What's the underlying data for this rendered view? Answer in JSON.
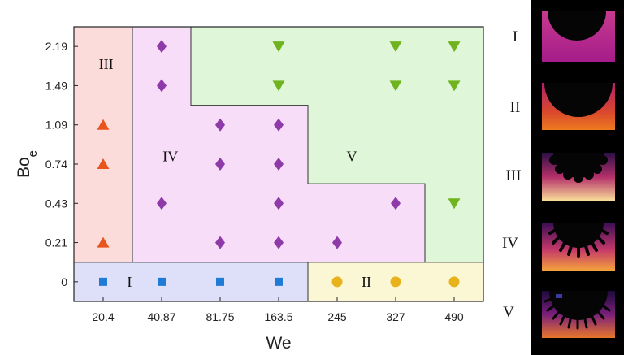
{
  "chart_data": {
    "type": "scatter",
    "xlabel": "We",
    "ylabel": "Bo",
    "ylabel_subscript": "e",
    "x_categories": [
      "20.4",
      "40.87",
      "81.75",
      "163.5",
      "245",
      "327",
      "490"
    ],
    "y_categories": [
      "0",
      "0.21",
      "0.43",
      "0.74",
      "1.09",
      "1.49",
      "2.19"
    ],
    "regions": [
      {
        "label": "I",
        "color": "#dde0f8",
        "polygon": [
          [
            -0.5,
            -0.5
          ],
          [
            3.5,
            -0.5
          ],
          [
            3.5,
            0.5
          ],
          [
            -0.5,
            0.5
          ]
        ],
        "label_at": [
          0.45,
          0
        ]
      },
      {
        "label": "II",
        "color": "#fbf7d5",
        "polygon": [
          [
            3.5,
            -0.5
          ],
          [
            6.5,
            -0.5
          ],
          [
            6.5,
            0.5
          ],
          [
            3.5,
            0.5
          ]
        ],
        "label_at": [
          4.5,
          0
        ]
      },
      {
        "label": "III",
        "color": "#fbdcdb",
        "polygon": [
          [
            -0.5,
            0.5
          ],
          [
            0.5,
            0.5
          ],
          [
            0.5,
            6.5
          ],
          [
            -0.5,
            6.5
          ]
        ],
        "label_at": [
          0.05,
          5.55
        ]
      },
      {
        "label": "IV",
        "color": "#f7ddf8",
        "polygon": [
          [
            0.5,
            0.5
          ],
          [
            5.5,
            0.5
          ],
          [
            5.5,
            2.5
          ],
          [
            3.5,
            2.5
          ],
          [
            3.5,
            4.5
          ],
          [
            1.5,
            4.5
          ],
          [
            1.5,
            6.5
          ],
          [
            0.5,
            6.5
          ]
        ],
        "label_at": [
          1.15,
          3.2
        ]
      },
      {
        "label": "V",
        "color": "#dff6d8",
        "polygon": [
          [
            1.5,
            4.5
          ],
          [
            3.5,
            4.5
          ],
          [
            3.5,
            2.5
          ],
          [
            5.5,
            2.5
          ],
          [
            5.5,
            0.5
          ],
          [
            6.5,
            0.5
          ],
          [
            6.5,
            6.5
          ],
          [
            1.5,
            6.5
          ]
        ],
        "label_at": [
          4.25,
          3.2
        ]
      }
    ],
    "series": [
      {
        "name": "I",
        "marker": "square",
        "color": "#1f7bd4",
        "points": [
          [
            "20.4",
            "0"
          ],
          [
            "40.87",
            "0"
          ],
          [
            "81.75",
            "0"
          ],
          [
            "163.5",
            "0"
          ]
        ]
      },
      {
        "name": "II",
        "marker": "circle",
        "color": "#e8b21c",
        "points": [
          [
            "245",
            "0"
          ],
          [
            "327",
            "0"
          ],
          [
            "490",
            "0"
          ]
        ]
      },
      {
        "name": "III",
        "marker": "triangle-up",
        "color": "#e8541c",
        "points": [
          [
            "20.4",
            "0.21"
          ],
          [
            "20.4",
            "0.74"
          ],
          [
            "20.4",
            "1.09"
          ]
        ]
      },
      {
        "name": "IV",
        "marker": "diamond",
        "color": "#8e3aa8",
        "points": [
          [
            "40.87",
            "2.19"
          ],
          [
            "40.87",
            "1.49"
          ],
          [
            "40.87",
            "0.43"
          ],
          [
            "81.75",
            "1.09"
          ],
          [
            "81.75",
            "0.74"
          ],
          [
            "81.75",
            "0.21"
          ],
          [
            "163.5",
            "1.09"
          ],
          [
            "163.5",
            "0.74"
          ],
          [
            "163.5",
            "0.43"
          ],
          [
            "163.5",
            "0.21"
          ],
          [
            "245",
            "0.21"
          ],
          [
            "327",
            "0.43"
          ]
        ]
      },
      {
        "name": "V",
        "marker": "triangle-down",
        "color": "#6fb31f",
        "points": [
          [
            "163.5",
            "2.19"
          ],
          [
            "163.5",
            "1.49"
          ],
          [
            "327",
            "2.19"
          ],
          [
            "327",
            "1.49"
          ],
          [
            "490",
            "2.19"
          ],
          [
            "490",
            "1.49"
          ],
          [
            "490",
            "0.43"
          ]
        ]
      }
    ],
    "side_panels": [
      {
        "label": "I",
        "image": "droplet-snapshot-circular-cavity"
      },
      {
        "label": "II",
        "image": "droplet-snapshot-scalloped-edge"
      },
      {
        "label": "III",
        "image": "droplet-snapshot-lobed-edge"
      },
      {
        "label": "IV",
        "image": "droplet-snapshot-fingered-edge"
      },
      {
        "label": "V",
        "image": "droplet-snapshot-fragmented-edge"
      }
    ]
  }
}
